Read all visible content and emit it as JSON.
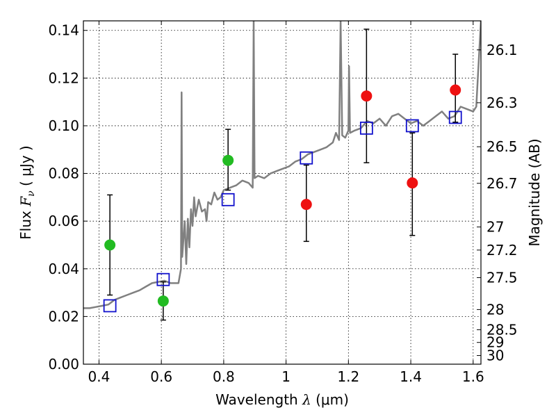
{
  "chart_data": {
    "type": "scatter",
    "xlabel": {
      "prefix": "Wavelength  ",
      "symbol": "λ",
      "suffix": " (μm)"
    },
    "ylabel": {
      "prefix": "Flux  ",
      "symbol": "F",
      "subscript": "ν",
      "suffix": "  ( μJy )"
    },
    "y2label": "Magnitude (AB)",
    "xlim": [
      0.35,
      1.625
    ],
    "ylim": [
      0.0,
      0.144
    ],
    "grid": true,
    "x_ticks": [
      {
        "value": 0.4,
        "label": "0.4"
      },
      {
        "value": 0.6,
        "label": "0.6"
      },
      {
        "value": 0.8,
        "label": "0.8"
      },
      {
        "value": 1.0,
        "label": "1"
      },
      {
        "value": 1.2,
        "label": "1.2"
      },
      {
        "value": 1.4,
        "label": "1.4"
      },
      {
        "value": 1.6,
        "label": "1.6"
      }
    ],
    "y_ticks": [
      {
        "value": 0.0,
        "label": "0.00"
      },
      {
        "value": 0.02,
        "label": "0.02"
      },
      {
        "value": 0.04,
        "label": "0.04"
      },
      {
        "value": 0.06,
        "label": "0.06"
      },
      {
        "value": 0.08,
        "label": "0.08"
      },
      {
        "value": 0.1,
        "label": "0.10"
      },
      {
        "value": 0.12,
        "label": "0.12"
      },
      {
        "value": 0.14,
        "label": "0.14"
      }
    ],
    "mag_ticks": [
      {
        "label": "26.1",
        "mag": 26.1
      },
      {
        "label": "26.3",
        "mag": 26.3
      },
      {
        "label": "26.5",
        "mag": 26.5
      },
      {
        "label": "26.7",
        "mag": 26.7
      },
      {
        "label": "27",
        "mag": 27.0
      },
      {
        "label": "27.2",
        "mag": 27.2
      },
      {
        "label": "27.5",
        "mag": 27.5
      },
      {
        "label": "28",
        "mag": 28.0
      },
      {
        "label": "28.5",
        "mag": 28.5
      },
      {
        "label": "29",
        "mag": 29.0
      },
      {
        "label": "30",
        "mag": 30.0
      }
    ],
    "colors": {
      "spectrum": "#808080",
      "detection": "#22bb22",
      "nondetection": "#ee1111",
      "model_box": "#1111cc",
      "errorbar": "#000000"
    },
    "spectrum": [
      [
        0.35,
        0.0235
      ],
      [
        0.37,
        0.0235
      ],
      [
        0.39,
        0.024
      ],
      [
        0.41,
        0.0245
      ],
      [
        0.43,
        0.025
      ],
      [
        0.45,
        0.027
      ],
      [
        0.47,
        0.028
      ],
      [
        0.49,
        0.029
      ],
      [
        0.51,
        0.03
      ],
      [
        0.53,
        0.031
      ],
      [
        0.55,
        0.0325
      ],
      [
        0.57,
        0.034
      ],
      [
        0.59,
        0.0345
      ],
      [
        0.61,
        0.035
      ],
      [
        0.63,
        0.034
      ],
      [
        0.645,
        0.034
      ],
      [
        0.655,
        0.034
      ],
      [
        0.663,
        0.04
      ],
      [
        0.665,
        0.114
      ],
      [
        0.667,
        0.045
      ],
      [
        0.675,
        0.06
      ],
      [
        0.68,
        0.042
      ],
      [
        0.685,
        0.061
      ],
      [
        0.69,
        0.049
      ],
      [
        0.695,
        0.065
      ],
      [
        0.7,
        0.058
      ],
      [
        0.705,
        0.07
      ],
      [
        0.71,
        0.062
      ],
      [
        0.72,
        0.069
      ],
      [
        0.73,
        0.064
      ],
      [
        0.74,
        0.065
      ],
      [
        0.745,
        0.06
      ],
      [
        0.75,
        0.068
      ],
      [
        0.76,
        0.067
      ],
      [
        0.77,
        0.072
      ],
      [
        0.78,
        0.069
      ],
      [
        0.79,
        0.07
      ],
      [
        0.8,
        0.073
      ],
      [
        0.82,
        0.074
      ],
      [
        0.84,
        0.075
      ],
      [
        0.86,
        0.077
      ],
      [
        0.88,
        0.076
      ],
      [
        0.893,
        0.074
      ],
      [
        0.896,
        0.144
      ],
      [
        0.899,
        0.078
      ],
      [
        0.91,
        0.079
      ],
      [
        0.93,
        0.078
      ],
      [
        0.95,
        0.08
      ],
      [
        0.97,
        0.081
      ],
      [
        0.99,
        0.082
      ],
      [
        1.01,
        0.083
      ],
      [
        1.03,
        0.085
      ],
      [
        1.05,
        0.086
      ],
      [
        1.07,
        0.088
      ],
      [
        1.09,
        0.089
      ],
      [
        1.11,
        0.09
      ],
      [
        1.13,
        0.091
      ],
      [
        1.15,
        0.093
      ],
      [
        1.16,
        0.097
      ],
      [
        1.17,
        0.094
      ],
      [
        1.175,
        0.144
      ],
      [
        1.18,
        0.096
      ],
      [
        1.19,
        0.095
      ],
      [
        1.2,
        0.098
      ],
      [
        1.202,
        0.125
      ],
      [
        1.205,
        0.097
      ],
      [
        1.22,
        0.098
      ],
      [
        1.24,
        0.099
      ],
      [
        1.26,
        0.102
      ],
      [
        1.28,
        0.101
      ],
      [
        1.3,
        0.103
      ],
      [
        1.32,
        0.1
      ],
      [
        1.34,
        0.104
      ],
      [
        1.36,
        0.105
      ],
      [
        1.38,
        0.103
      ],
      [
        1.4,
        0.101
      ],
      [
        1.42,
        0.102
      ],
      [
        1.44,
        0.1
      ],
      [
        1.46,
        0.102
      ],
      [
        1.48,
        0.104
      ],
      [
        1.5,
        0.106
      ],
      [
        1.52,
        0.103
      ],
      [
        1.54,
        0.104
      ],
      [
        1.56,
        0.108
      ],
      [
        1.58,
        0.107
      ],
      [
        1.6,
        0.106
      ],
      [
        1.61,
        0.108
      ],
      [
        1.615,
        0.12
      ],
      [
        1.625,
        0.144
      ]
    ],
    "detections": [
      {
        "x": 0.435,
        "y": 0.05,
        "err_low": 0.029,
        "err_high": 0.071
      },
      {
        "x": 0.606,
        "y": 0.0265,
        "err_low": 0.0185,
        "err_high": 0.0345
      },
      {
        "x": 0.814,
        "y": 0.0855,
        "err_low": 0.073,
        "err_high": 0.0985
      }
    ],
    "nondetections": [
      {
        "x": 1.065,
        "y": 0.067,
        "err_low": 0.0515,
        "err_high": 0.0835
      },
      {
        "x": 1.258,
        "y": 0.1125,
        "err_low": 0.0845,
        "err_high": 0.1405
      },
      {
        "x": 1.405,
        "y": 0.076,
        "err_low": 0.054,
        "err_high": 0.097
      },
      {
        "x": 1.543,
        "y": 0.115,
        "err_low": 0.1015,
        "err_high": 0.13
      }
    ],
    "model_boxes": [
      {
        "x": 0.435,
        "y": 0.0245
      },
      {
        "x": 0.606,
        "y": 0.0355
      },
      {
        "x": 0.814,
        "y": 0.069
      },
      {
        "x": 1.065,
        "y": 0.0865
      },
      {
        "x": 1.258,
        "y": 0.099
      },
      {
        "x": 1.405,
        "y": 0.1
      },
      {
        "x": 1.543,
        "y": 0.1035
      }
    ]
  }
}
